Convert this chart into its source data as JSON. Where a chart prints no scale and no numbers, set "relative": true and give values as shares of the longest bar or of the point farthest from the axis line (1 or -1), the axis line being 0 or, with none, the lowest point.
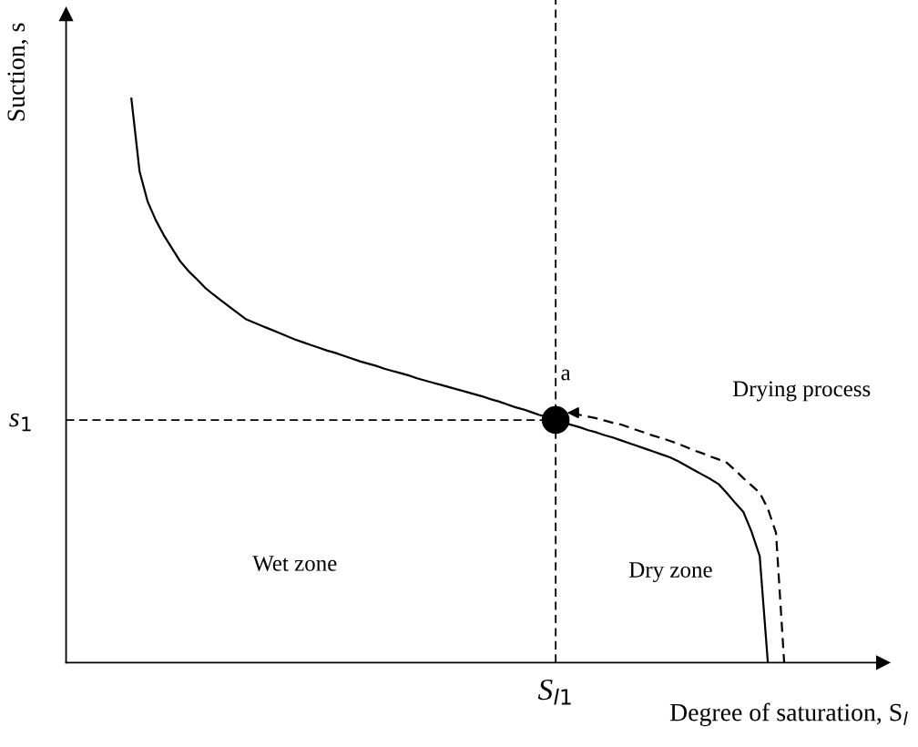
{
  "chart_data": {
    "type": "line",
    "relative": true,
    "xlabel": "Degree of saturation, S$_{l}$",
    "ylabel": "Suction, s",
    "categories": [
      null,
      null,
      null,
      null,
      null,
      null,
      null,
      null,
      null,
      null,
      null,
      null,
      null,
      null,
      null,
      null,
      null,
      null,
      null,
      null,
      null,
      null,
      null,
      null,
      null,
      null,
      null,
      null,
      null,
      null,
      null,
      null,
      null,
      null,
      null,
      null,
      null,
      null,
      null,
      null,
      null,
      null,
      null,
      null,
      null,
      null,
      null,
      null,
      null,
      null,
      null,
      null,
      null,
      null,
      null,
      null,
      null,
      null,
      null,
      null,
      null,
      null,
      null,
      null,
      null,
      null,
      null,
      null,
      null,
      null,
      null,
      null,
      null,
      null,
      null,
      null,
      null,
      null,
      null,
      null,
      null,
      null,
      null,
      null,
      null,
      null,
      null,
      null,
      null
    ],
    "series": [
      {
        "color": "#000000",
        "line_style": "solid",
        "values": [
          null,
          null,
          null,
          null,
          null,
          null,
          null,
          null,
          1.0,
          0.871,
          0.817,
          0.784,
          0.757,
          0.734,
          0.711,
          0.694,
          0.68,
          0.665,
          0.653,
          0.642,
          0.631,
          0.62,
          0.609,
          0.603,
          0.597,
          0.591,
          0.585,
          0.579,
          0.573,
          0.568,
          0.563,
          0.558,
          0.553,
          0.549,
          0.544,
          0.539,
          0.534,
          0.53,
          0.526,
          0.521,
          0.517,
          0.513,
          0.509,
          0.504,
          0.5,
          0.496,
          0.492,
          0.488,
          0.484,
          0.48,
          0.476,
          0.472,
          0.467,
          0.463,
          0.458,
          0.453,
          0.449,
          0.444,
          0.439,
          0.435,
          0.43,
          0.425,
          0.421,
          0.417,
          0.412,
          0.408,
          0.403,
          0.399,
          0.394,
          0.389,
          0.384,
          0.379,
          0.374,
          0.369,
          0.364,
          0.357,
          0.349,
          0.341,
          0.333,
          0.325,
          0.316,
          0.3,
          0.283,
          0.267,
          0.232,
          0.189,
          0,
          null,
          null
        ]
      },
      {
        "color": "#000000",
        "line_style": "dashed",
        "values": [
          null,
          null,
          null,
          null,
          null,
          null,
          null,
          null,
          null,
          null,
          null,
          null,
          null,
          null,
          null,
          null,
          null,
          null,
          null,
          null,
          null,
          null,
          null,
          null,
          null,
          null,
          null,
          null,
          null,
          null,
          null,
          null,
          null,
          null,
          null,
          null,
          null,
          null,
          null,
          null,
          null,
          null,
          null,
          null,
          null,
          null,
          null,
          null,
          null,
          null,
          null,
          null,
          null,
          null,
          null,
          null,
          null,
          null,
          null,
          null,
          null,
          null,
          0.443,
          0.439,
          0.436,
          0.433,
          0.429,
          0.425,
          0.422,
          0.417,
          0.412,
          0.407,
          0.402,
          0.398,
          0.393,
          0.388,
          0.382,
          0.376,
          0.371,
          0.365,
          0.36,
          0.354,
          0.341,
          0.327,
          0.314,
          0.301,
          0.273,
          0.23,
          0
        ]
      }
    ],
    "ref_lines": [
      {
        "axis": "x",
        "label": "S$_{l1}$",
        "line_style": "dashed"
      },
      {
        "axis": "y",
        "value": 0.43,
        "label": "s$_{1}$",
        "line_style": "dashed"
      }
    ],
    "annotations": [
      "a",
      "Drying process",
      "Wet zone",
      "Dry zone"
    ],
    "grid": false,
    "legend": false
  }
}
